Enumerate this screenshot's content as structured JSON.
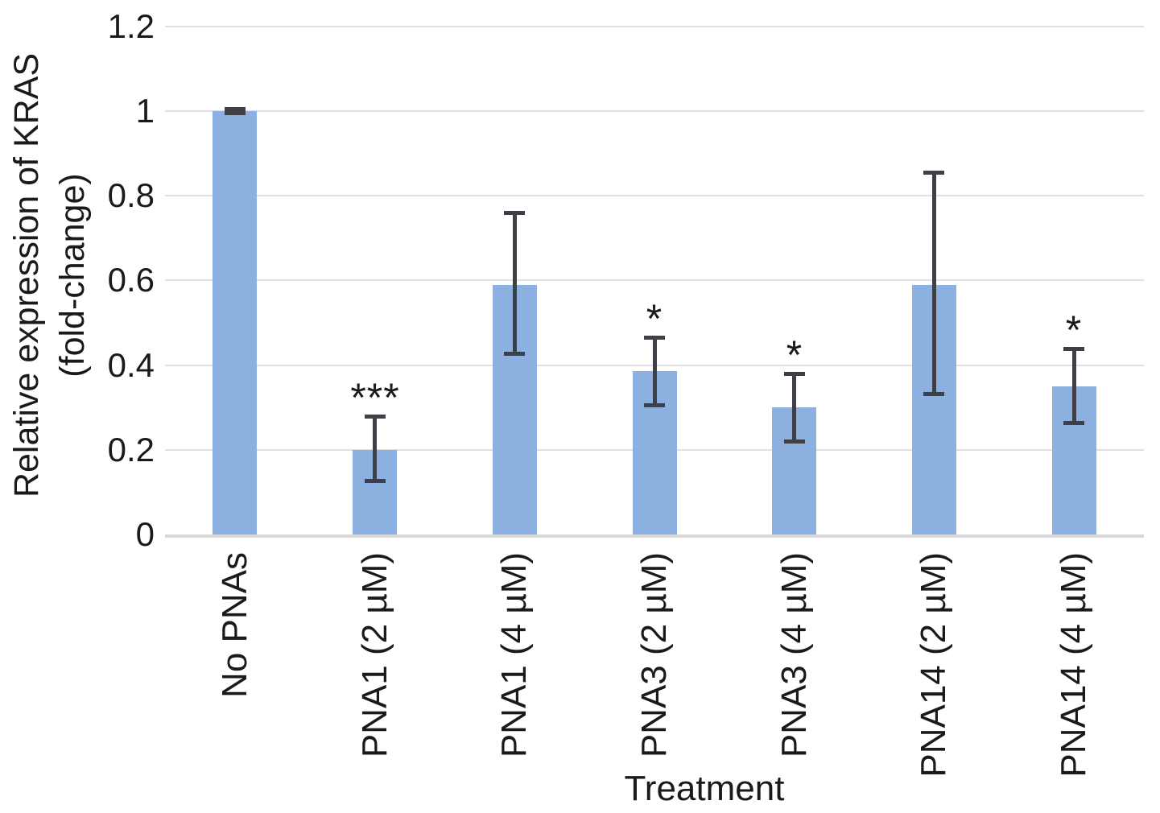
{
  "chart_data": {
    "type": "bar",
    "title": "",
    "xlabel": "Treatment",
    "ylabel_line1": "Relative expression of KRAS",
    "ylabel_line2": "(fold-change)",
    "categories": [
      "No PNAs",
      "PNA1 (2 µM)",
      "PNA1 (4 µM)",
      "PNA3 (2 µM)",
      "PNA3 (4 µM)",
      "PNA14 (2 µM)",
      "PNA14 (4 µM)"
    ],
    "values": [
      1.0,
      0.2,
      0.59,
      0.385,
      0.3,
      0.59,
      0.35
    ],
    "error_up": [
      0.005,
      0.08,
      0.17,
      0.08,
      0.08,
      0.265,
      0.09
    ],
    "error_down": [
      0.005,
      0.075,
      0.165,
      0.08,
      0.082,
      0.26,
      0.088
    ],
    "significance": [
      "",
      "***",
      "",
      "*",
      "*",
      "",
      "*"
    ],
    "ylim": [
      0,
      1.2
    ],
    "ytick_values": [
      0,
      0.2,
      0.4,
      0.6,
      0.8,
      1,
      1.2
    ],
    "ytick_labels": [
      "0",
      "0.2",
      "0.4",
      "0.6",
      "0.8",
      "1",
      "1.2"
    ],
    "grid": "horizontal",
    "legend": "none",
    "colors": {
      "bar": "#8CB1E0",
      "error_bar": "#3F4047",
      "gridline": "#E0E0E0",
      "axis_line": "#D8D8D8",
      "text": "#1a1a1a"
    }
  }
}
